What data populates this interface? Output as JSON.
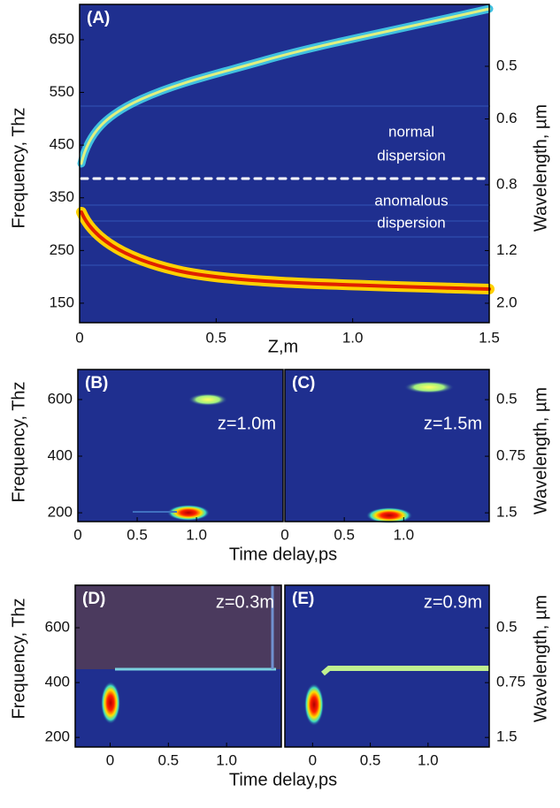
{
  "chart_data": [
    {
      "type": "heatmap",
      "label": "(A)",
      "xlim": [
        0,
        1.5
      ],
      "ylim": [
        113,
        717
      ],
      "xticks": [
        0,
        0.5,
        {
          "value": 1,
          "label": "1.0"
        },
        1.5
      ],
      "yticks": [
        150,
        250,
        350,
        450,
        550,
        650
      ],
      "y2ticks": [
        0.5,
        0.6,
        0.8,
        1.2,
        {
          "value": 2,
          "label": "2.0"
        }
      ],
      "x_label": "Z,m",
      "y_label": "Frequency, Thz",
      "y2_label": "Wavelength, µm",
      "annotations": [
        "normal",
        "dispersion",
        "anomalous",
        "dispersion"
      ]
    },
    {
      "type": "heatmap",
      "label": "(B)",
      "annotation": "z=1.0m",
      "xlim": [
        0,
        1.73
      ],
      "ylim": [
        169,
        706
      ],
      "xticks": [
        0,
        0.5,
        {
          "value": 1,
          "label": "1.0"
        }
      ],
      "yticks": [
        200,
        400,
        600
      ],
      "x_label": "Time delay,ps",
      "y_label": "Frequency, Thz"
    },
    {
      "type": "heatmap",
      "label": "(C)",
      "annotation": "z=1.5m",
      "xlim": [
        0,
        1.72
      ],
      "ylim": [
        169,
        706
      ],
      "xticks": [
        0,
        0.5,
        {
          "value": 1,
          "label": "1.0"
        }
      ],
      "y2ticks": [
        0.5,
        0.75,
        1.5
      ],
      "y2_label": "Wavelength, µm"
    },
    {
      "type": "heatmap",
      "label": "(D)",
      "annotation": "z=0.3m",
      "xlim": [
        -0.3,
        1.47
      ],
      "ylim": [
        165,
        755
      ],
      "xticks": [
        0,
        0.5,
        {
          "value": 1,
          "label": "1.0"
        }
      ],
      "yticks": [
        200,
        400,
        600
      ],
      "x_label": "Time delay,ps",
      "y_label": "Frequency, Thz"
    },
    {
      "type": "heatmap",
      "label": "(E)",
      "annotation": "z=0.9m",
      "xlim": [
        -0.24,
        1.53
      ],
      "ylim": [
        165,
        755
      ],
      "xticks": [
        0,
        0.5,
        {
          "value": 1,
          "label": "1.0"
        }
      ],
      "y2ticks": [
        0.5,
        0.75,
        1.5
      ],
      "y2_label": "Wavelength, µm"
    }
  ]
}
